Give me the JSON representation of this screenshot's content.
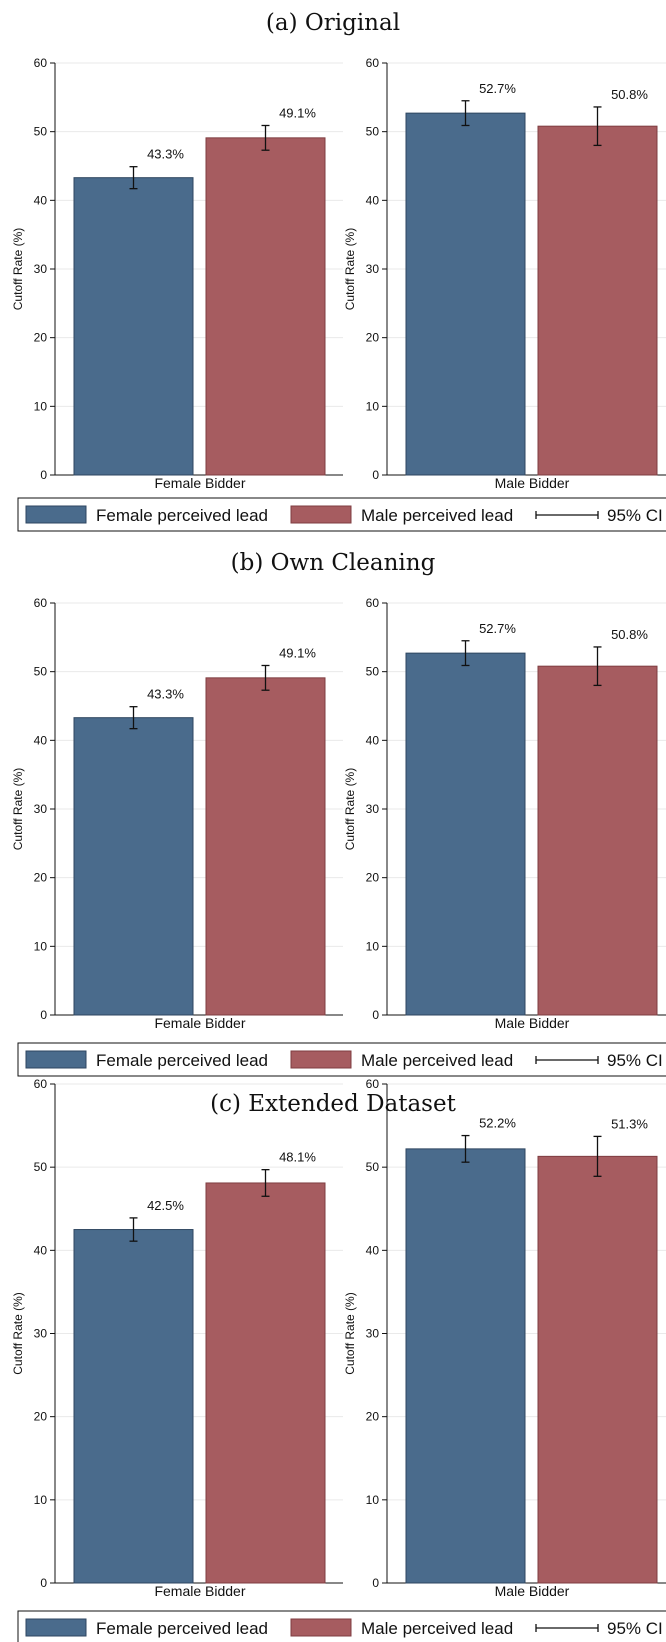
{
  "colors": {
    "female_lead": "#4a6b8c",
    "male_lead": "#a65c60",
    "bar_edge": "#2e4660",
    "bar_edge_male": "#7f3d41"
  },
  "legend": {
    "female": "Female perceived lead",
    "male": "Male perceived lead",
    "ci": "95% CI"
  },
  "chart_data": [
    {
      "type": "bar",
      "title": "(a) Original",
      "ylabel": "Cutoff Rate (%)",
      "ylim": [
        0,
        60
      ],
      "yticks": [
        "0",
        "10",
        "20",
        "30",
        "40",
        "50",
        "60"
      ],
      "grid": true,
      "legend_placement": "bottom",
      "panels": [
        {
          "category": "Female Bidder",
          "series": [
            {
              "name": "Female perceived lead",
              "value": 43.3,
              "ci": [
                41.7,
                44.9
              ],
              "label": "43.3%"
            },
            {
              "name": "Male perceived lead",
              "value": 49.1,
              "ci": [
                47.3,
                50.9
              ],
              "label": "49.1%"
            }
          ]
        },
        {
          "category": "Male Bidder",
          "series": [
            {
              "name": "Female perceived lead",
              "value": 52.7,
              "ci": [
                50.9,
                54.5
              ],
              "label": "52.7%"
            },
            {
              "name": "Male perceived lead",
              "value": 50.8,
              "ci": [
                48.0,
                53.6
              ],
              "label": "50.8%"
            }
          ]
        }
      ]
    },
    {
      "type": "bar",
      "title": "(b) Own Cleaning",
      "ylabel": "Cutoff Rate (%)",
      "ylim": [
        0,
        60
      ],
      "yticks": [
        "0",
        "10",
        "20",
        "30",
        "40",
        "50",
        "60"
      ],
      "grid": true,
      "legend_placement": "bottom",
      "panels": [
        {
          "category": "Female Bidder",
          "series": [
            {
              "name": "Female perceived lead",
              "value": 43.3,
              "ci": [
                41.7,
                44.9
              ],
              "label": "43.3%"
            },
            {
              "name": "Male perceived lead",
              "value": 49.1,
              "ci": [
                47.3,
                50.9
              ],
              "label": "49.1%"
            }
          ]
        },
        {
          "category": "Male Bidder",
          "series": [
            {
              "name": "Female perceived lead",
              "value": 52.7,
              "ci": [
                50.9,
                54.5
              ],
              "label": "52.7%"
            },
            {
              "name": "Male perceived lead",
              "value": 50.8,
              "ci": [
                48.0,
                53.6
              ],
              "label": "50.8%"
            }
          ]
        }
      ]
    },
    {
      "type": "bar",
      "title": "(c) Extended Dataset",
      "ylabel": "Cutoff Rate (%)",
      "ylim": [
        0,
        60
      ],
      "yticks": [
        "0",
        "10",
        "20",
        "30",
        "40",
        "50",
        "60"
      ],
      "grid": true,
      "legend_placement": "bottom",
      "panels": [
        {
          "category": "Female Bidder",
          "series": [
            {
              "name": "Female perceived lead",
              "value": 42.5,
              "ci": [
                41.1,
                43.9
              ],
              "label": "42.5%"
            },
            {
              "name": "Male perceived lead",
              "value": 48.1,
              "ci": [
                46.5,
                49.7
              ],
              "label": "48.1%"
            }
          ]
        },
        {
          "category": "Male Bidder",
          "series": [
            {
              "name": "Female perceived lead",
              "value": 52.2,
              "ci": [
                50.6,
                53.8
              ],
              "label": "52.2%"
            },
            {
              "name": "Male perceived lead",
              "value": 51.3,
              "ci": [
                48.9,
                53.7
              ],
              "label": "51.3%"
            }
          ]
        }
      ]
    }
  ]
}
